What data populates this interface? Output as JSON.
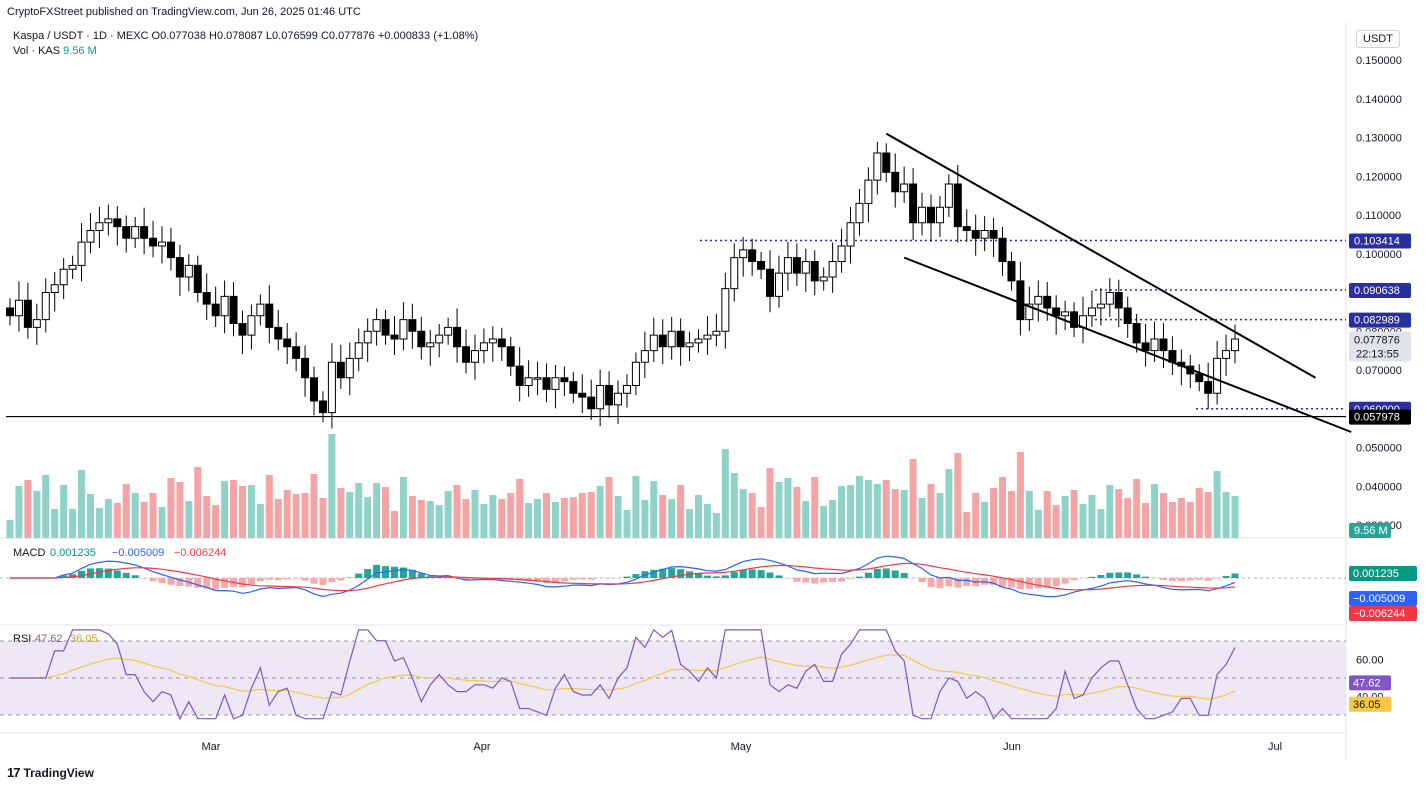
{
  "publisher": "CryptoFXStreet published on TradingView.com, Jun 26, 2025 01:46 UTC",
  "header": {
    "symbol_line": "Kaspa / USDT · 1D · MEXC   O0.077038  H0.078087  L0.076599  C0.077876  +0.000833 (+1.08%)",
    "vol_label": "Vol · KAS",
    "vol_value": "9.56 M"
  },
  "currency": "USDT",
  "footer_brand": "TradingView",
  "colors": {
    "up": "#ffffff",
    "down": "#000000",
    "vol_up": "#8fd3c8",
    "vol_down": "#f4a4a4",
    "macd_line": "#2962ff",
    "signal_line": "#f23645",
    "rsi_line": "#7e57c2",
    "rsi_ma": "#f7c843",
    "rsi_band": "#ede7f6"
  },
  "chart_data": [
    {
      "type": "candlestick",
      "title": "Kaspa / USDT · 1D · MEXC",
      "x_labels": [
        "Mar",
        "Apr",
        "May",
        "Jun",
        "Jul"
      ],
      "y_ticks": [
        "0.150000",
        "0.140000",
        "0.130000",
        "0.120000",
        "0.110000",
        "0.100000",
        "0.090000",
        "0.080000",
        "0.070000",
        "0.050000",
        "0.040000",
        "0.030000"
      ],
      "ylim": [
        0.028,
        0.155
      ],
      "closes": [
        0.084,
        0.088,
        0.081,
        0.083,
        0.09,
        0.092,
        0.096,
        0.097,
        0.103,
        0.106,
        0.108,
        0.109,
        0.107,
        0.104,
        0.107,
        0.104,
        0.102,
        0.103,
        0.099,
        0.094,
        0.097,
        0.09,
        0.087,
        0.084,
        0.089,
        0.082,
        0.079,
        0.084,
        0.087,
        0.081,
        0.078,
        0.076,
        0.073,
        0.068,
        0.062,
        0.059,
        0.072,
        0.068,
        0.073,
        0.077,
        0.08,
        0.083,
        0.079,
        0.078,
        0.083,
        0.08,
        0.076,
        0.077,
        0.079,
        0.081,
        0.076,
        0.072,
        0.075,
        0.077,
        0.078,
        0.076,
        0.071,
        0.066,
        0.068,
        0.068,
        0.065,
        0.068,
        0.067,
        0.064,
        0.063,
        0.06,
        0.066,
        0.061,
        0.064,
        0.066,
        0.072,
        0.075,
        0.079,
        0.076,
        0.08,
        0.076,
        0.077,
        0.078,
        0.079,
        0.08,
        0.091,
        0.099,
        0.101,
        0.098,
        0.096,
        0.089,
        0.095,
        0.099,
        0.095,
        0.098,
        0.093,
        0.094,
        0.098,
        0.102,
        0.108,
        0.113,
        0.119,
        0.126,
        0.121,
        0.116,
        0.118,
        0.108,
        0.112,
        0.108,
        0.112,
        0.118,
        0.107,
        0.106,
        0.104,
        0.106,
        0.104,
        0.098,
        0.093,
        0.083,
        0.087,
        0.089,
        0.086,
        0.084,
        0.085,
        0.081,
        0.084,
        0.086,
        0.087,
        0.09,
        0.086,
        0.082,
        0.077,
        0.075,
        0.078,
        0.075,
        0.072,
        0.071,
        0.069,
        0.067,
        0.064,
        0.073,
        0.075,
        0.078
      ],
      "last_price": "0.077876",
      "countdown": "22:13:55",
      "price_tags": [
        {
          "label": "0.103414",
          "price": 0.103414,
          "color": "#2a2fa0",
          "style": "dotted"
        },
        {
          "label": "0.090638",
          "price": 0.090638,
          "color": "#2a2fa0",
          "style": "dotted"
        },
        {
          "label": "0.082989",
          "price": 0.082989,
          "color": "#2a2fa0",
          "style": "dotted"
        },
        {
          "label": "0.060000",
          "price": 0.06,
          "color": "#2a2fa0",
          "style": "dotted"
        },
        {
          "label": "0.057978",
          "price": 0.057978,
          "color": "#000000",
          "style": "solid"
        }
      ],
      "volume_label": "9.56 M",
      "trendlines": [
        {
          "from": [
            98,
            0.131
          ],
          "to": [
            146,
            0.068
          ]
        },
        {
          "from": [
            100,
            0.099
          ],
          "to": [
            150,
            0.054
          ]
        }
      ]
    },
    {
      "type": "macd",
      "label": "MACD",
      "values": [
        "0.001235",
        "−0.005009",
        "−0.006244"
      ],
      "tags": [
        {
          "label": "0.001235",
          "value": 0.001235,
          "color": "#089981"
        },
        {
          "label": "−0.005009",
          "value": -0.005009,
          "color": "#2962ff"
        },
        {
          "label": "−0.006244",
          "value": -0.006244,
          "color": "#f23645"
        }
      ]
    },
    {
      "type": "rsi",
      "label": "RSI",
      "values": [
        "47.62",
        "36.05"
      ],
      "y_ticks": [
        "60.00",
        "40.00"
      ],
      "tags": [
        {
          "label": "47.62",
          "value": 47.62,
          "color": "#7e57c2"
        },
        {
          "label": "36.05",
          "value": 36.05,
          "color": "#f7c843"
        }
      ]
    }
  ]
}
